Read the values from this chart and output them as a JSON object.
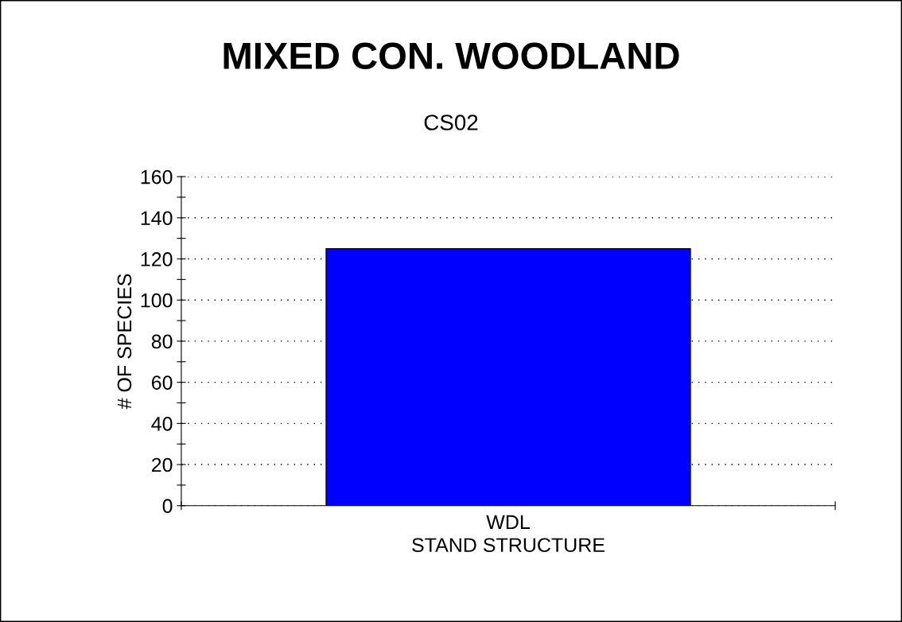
{
  "chart_data": {
    "type": "bar",
    "title": "MIXED CON. WOODLAND",
    "subtitle": "CS02",
    "xlabel": "STAND STRUCTURE",
    "ylabel": "# OF SPECIES",
    "categories": [
      "WDL"
    ],
    "values": [
      125
    ],
    "color": "#0000ff",
    "ylim": [
      0,
      160
    ],
    "yticks": [
      0,
      {
        "value": 10,
        "label": null
      },
      20,
      {
        "value": 30,
        "label": null
      },
      40,
      {
        "value": 50,
        "label": null
      },
      60,
      {
        "value": 70,
        "label": null
      },
      80,
      {
        "value": 90,
        "label": null
      },
      100,
      {
        "value": 110,
        "label": null
      },
      120,
      {
        "value": 130,
        "label": null
      },
      140,
      {
        "value": 150,
        "label": null
      },
      160
    ],
    "grid": "y",
    "legend": false
  }
}
